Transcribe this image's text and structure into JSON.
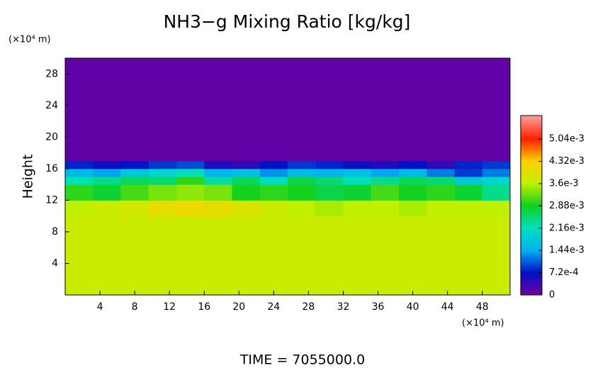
{
  "chart_data": {
    "type": "heatmap",
    "title": "NH3−g Mixing Ratio [kg/kg]",
    "y_label": "Height",
    "y_unit": "(×10⁴ m)",
    "x_unit": "(×10⁴ m)",
    "footer": "TIME = 7055000.0",
    "xlim": [
      0,
      51.2
    ],
    "xticks": [
      4,
      8,
      12,
      16,
      20,
      24,
      28,
      32,
      36,
      40,
      44,
      48
    ],
    "ylim": [
      0,
      30
    ],
    "yticks": [
      4,
      8,
      12,
      16,
      20,
      24,
      28
    ],
    "x_bins": [
      0,
      3.2,
      6.4,
      9.6,
      12.8,
      16,
      19.2,
      22.4,
      25.6,
      28.8,
      32,
      35.2,
      38.4,
      41.6,
      44.8,
      48,
      51.2
    ],
    "y_bins": [
      0,
      10,
      12,
      14,
      15,
      16,
      17,
      30
    ],
    "z": [
      [
        0.0037,
        0.0037,
        0.0037,
        0.0037,
        0.0037,
        0.0037,
        0.0037,
        0.0037,
        0.0037,
        0.0037,
        0.0037,
        0.0037,
        0.0037,
        0.0037,
        0.0037,
        0.0037
      ],
      [
        0.0036,
        0.0037,
        0.0038,
        0.004,
        0.0041,
        0.004,
        0.0039,
        0.0037,
        0.0036,
        0.0035,
        0.0036,
        0.0036,
        0.0035,
        0.0036,
        0.0036,
        0.0036
      ],
      [
        0.003,
        0.0028,
        0.0031,
        0.0033,
        0.0034,
        0.0033,
        0.0029,
        0.003,
        0.0029,
        0.0027,
        0.0028,
        0.0031,
        0.0029,
        0.003,
        0.0028,
        0.0024
      ],
      [
        0.0022,
        0.0024,
        0.0026,
        0.0025,
        0.003,
        0.0023,
        0.0026,
        0.0021,
        0.0027,
        0.0025,
        0.0022,
        0.0024,
        0.0026,
        0.0025,
        0.0018,
        0.002
      ],
      [
        0.0016,
        0.0014,
        0.0018,
        0.002,
        0.0022,
        0.0015,
        0.0017,
        0.0013,
        0.0016,
        0.0015,
        0.0017,
        0.0014,
        0.0016,
        0.0012,
        0.0009,
        0.0012
      ],
      [
        0.0008,
        0.0006,
        0.0007,
        0.0009,
        0.001,
        0.0005,
        0.0004,
        0.0007,
        0.0009,
        0.0008,
        0.0006,
        0.0005,
        0.0007,
        0.0004,
        0.0008,
        0.0009
      ],
      [
        0.0001,
        0.0001,
        0.0001,
        0.0001,
        0.0001,
        0.0001,
        0.0001,
        0.0001,
        0.0001,
        0.0001,
        0.0001,
        0.0001,
        0.0001,
        0.0001,
        0.0001,
        0.0001
      ]
    ],
    "colorscale": [
      [
        0,
        "#7000a0"
      ],
      [
        0.00072,
        "#0010c8"
      ],
      [
        0.00144,
        "#00b0f0"
      ],
      [
        0.00216,
        "#00e0c0"
      ],
      [
        0.00288,
        "#10d020"
      ],
      [
        0.0036,
        "#c0f000"
      ],
      [
        0.00432,
        "#ffd000"
      ],
      [
        0.00504,
        "#ff2000"
      ],
      [
        0.0058,
        "#ffa0a0"
      ]
    ],
    "colorbar_lim": [
      0,
      0.0058
    ],
    "colorbar_ticks": [
      0,
      {
        "value": 0.00072,
        "label": "7.2e-4"
      },
      {
        "value": 0.00144,
        "label": "1.44e-3"
      },
      {
        "value": 0.00216,
        "label": "2.16e-3"
      },
      {
        "value": 0.00288,
        "label": "2.88e-3"
      },
      {
        "value": 0.0036,
        "label": "3.6e-3"
      },
      {
        "value": 0.00432,
        "label": "4.32e-3"
      },
      {
        "value": 0.00504,
        "label": "5.04e-3"
      }
    ]
  }
}
